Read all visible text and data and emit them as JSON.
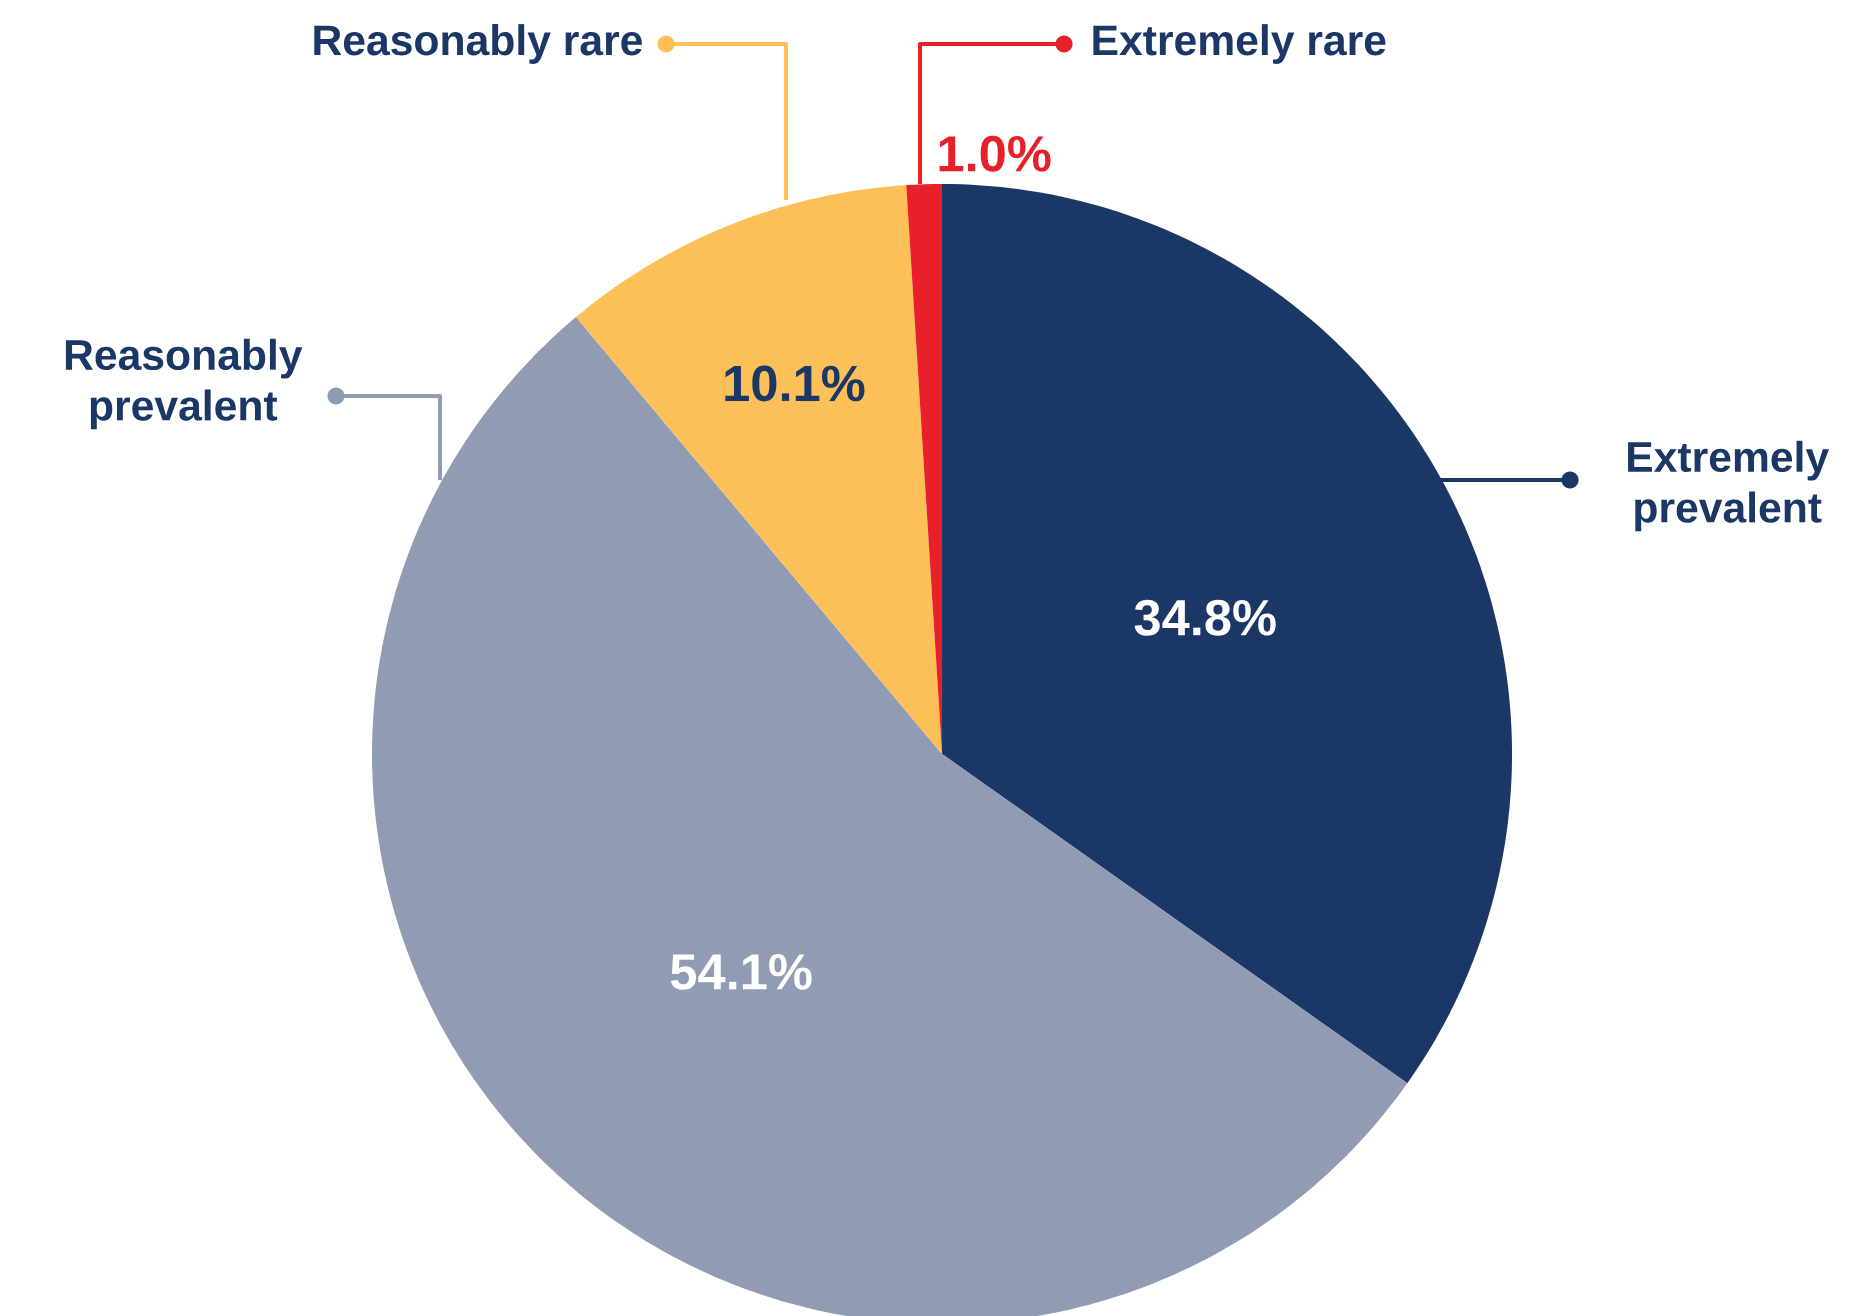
{
  "chart_data": {
    "type": "pie",
    "categories": [
      "Extremely prevalent",
      "Reasonably prevalent",
      "Reasonably rare",
      "Extremely rare"
    ],
    "values": [
      34.8,
      54.1,
      10.1,
      1.0
    ],
    "colors": [
      "#1b3766",
      "#8f9cb3",
      "#fdbf57",
      "#e8202a"
    ],
    "value_labels": [
      "34.8%",
      "54.1%",
      "10.1%",
      "1.0%"
    ],
    "legend": "top right"
  }
}
